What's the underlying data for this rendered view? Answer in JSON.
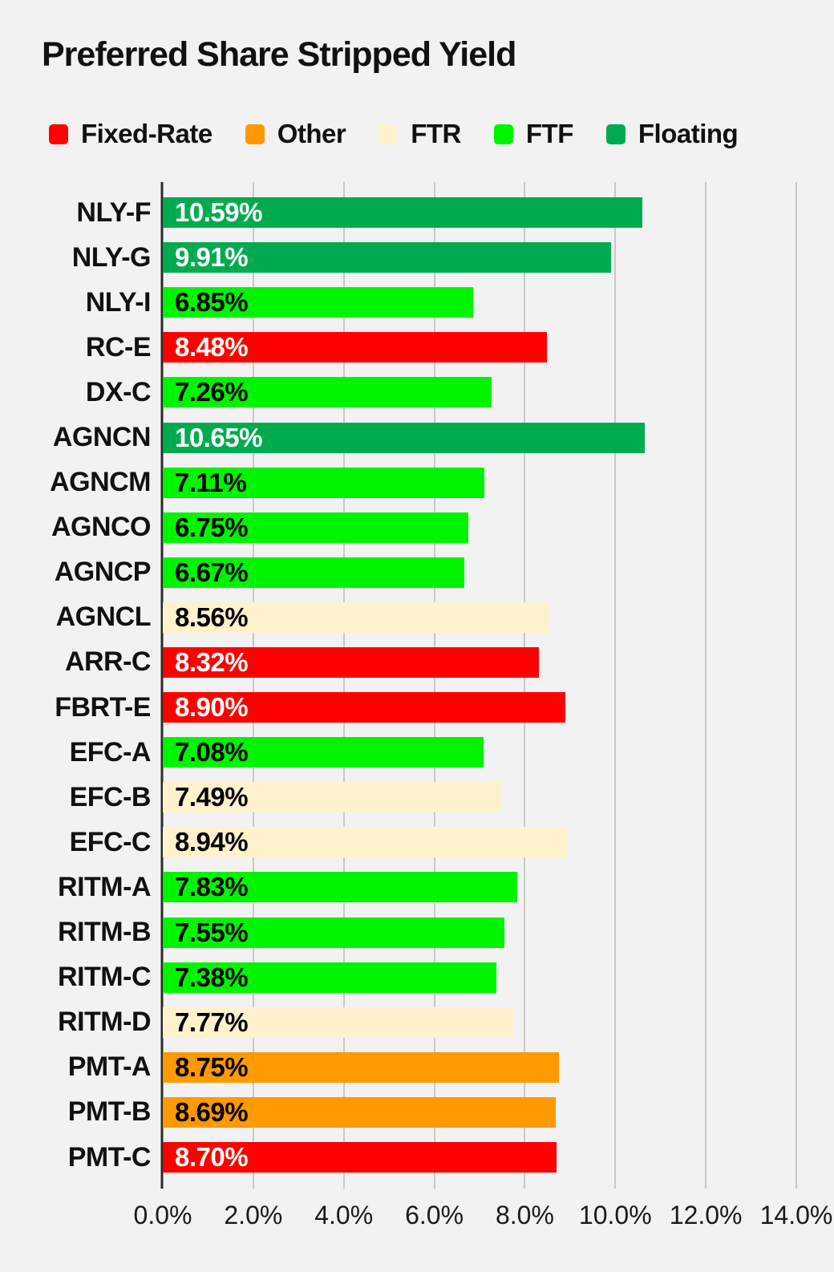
{
  "title": "Preferred Share Stripped Yield",
  "colors": {
    "background": "#F2F2F2",
    "gridline": "#C8C8C8",
    "axis_line": "#2B2B2B",
    "text": "#111111"
  },
  "chart_data": {
    "type": "bar",
    "orientation": "horizontal",
    "title": "Preferred Share Stripped Yield",
    "xlabel": "",
    "ylabel": "",
    "x_axis": {
      "min": 0,
      "max": 14,
      "ticks": [
        "0.0%",
        "2.0%",
        "4.0%",
        "6.0%",
        "8.0%",
        "10.0%",
        "12.0%",
        "14.0%"
      ],
      "grid": true
    },
    "legend": [
      "Fixed-Rate",
      "Other",
      "FTR",
      "FTF",
      "Floating"
    ],
    "legend_position": "top",
    "categories": {
      "Fixed-Rate": {
        "fill": "#FF0000",
        "text": "#FFFFFF"
      },
      "Other": {
        "fill": "#FF9900",
        "text": "#000000"
      },
      "FTR": {
        "fill": "#FFF2CC",
        "text": "#000000"
      },
      "FTF": {
        "fill": "#00F400",
        "text": "#000000"
      },
      "Floating": {
        "fill": "#00AB50",
        "text": "#FFFFFF"
      }
    },
    "bars": [
      {
        "ticker": "NLY-F",
        "value": 10.59,
        "label": "10.59%",
        "category": "Floating"
      },
      {
        "ticker": "NLY-G",
        "value": 9.91,
        "label": "9.91%",
        "category": "Floating"
      },
      {
        "ticker": "NLY-I",
        "value": 6.85,
        "label": "6.85%",
        "category": "FTF"
      },
      {
        "ticker": "RC-E",
        "value": 8.48,
        "label": "8.48%",
        "category": "Fixed-Rate"
      },
      {
        "ticker": "DX-C",
        "value": 7.26,
        "label": "7.26%",
        "category": "FTF"
      },
      {
        "ticker": "AGNCN",
        "value": 10.65,
        "label": "10.65%",
        "category": "Floating"
      },
      {
        "ticker": "AGNCM",
        "value": 7.11,
        "label": "7.11%",
        "category": "FTF"
      },
      {
        "ticker": "AGNCO",
        "value": 6.75,
        "label": "6.75%",
        "category": "FTF"
      },
      {
        "ticker": "AGNCP",
        "value": 6.67,
        "label": "6.67%",
        "category": "FTF"
      },
      {
        "ticker": "AGNCL",
        "value": 8.56,
        "label": "8.56%",
        "category": "FTR"
      },
      {
        "ticker": "ARR-C",
        "value": 8.32,
        "label": "8.32%",
        "category": "Fixed-Rate"
      },
      {
        "ticker": "FBRT-E",
        "value": 8.9,
        "label": "8.90%",
        "category": "Fixed-Rate"
      },
      {
        "ticker": "EFC-A",
        "value": 7.08,
        "label": "7.08%",
        "category": "FTF"
      },
      {
        "ticker": "EFC-B",
        "value": 7.49,
        "label": "7.49%",
        "category": "FTR"
      },
      {
        "ticker": "EFC-C",
        "value": 8.94,
        "label": "8.94%",
        "category": "FTR"
      },
      {
        "ticker": "RITM-A",
        "value": 7.83,
        "label": "7.83%",
        "category": "FTF"
      },
      {
        "ticker": "RITM-B",
        "value": 7.55,
        "label": "7.55%",
        "category": "FTF"
      },
      {
        "ticker": "RITM-C",
        "value": 7.38,
        "label": "7.38%",
        "category": "FTF"
      },
      {
        "ticker": "RITM-D",
        "value": 7.77,
        "label": "7.77%",
        "category": "FTR"
      },
      {
        "ticker": "PMT-A",
        "value": 8.75,
        "label": "8.75%",
        "category": "Other"
      },
      {
        "ticker": "PMT-B",
        "value": 8.69,
        "label": "8.69%",
        "category": "Other"
      },
      {
        "ticker": "PMT-C",
        "value": 8.7,
        "label": "8.70%",
        "category": "Fixed-Rate"
      }
    ]
  }
}
